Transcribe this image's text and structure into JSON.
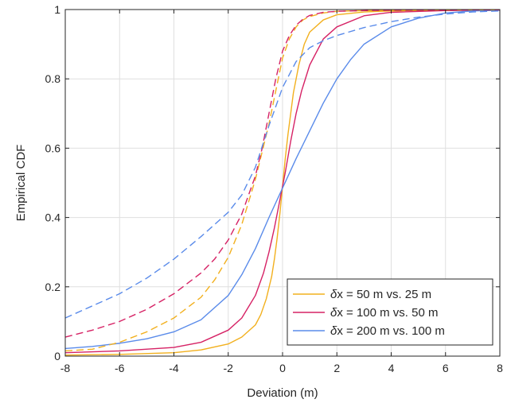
{
  "chart_data": {
    "type": "line",
    "title": "",
    "xlabel": "Deviation (m)",
    "ylabel": "Empirical CDF",
    "xlim": [
      -8,
      8
    ],
    "ylim": [
      0,
      1
    ],
    "xticks": [
      -8,
      -6,
      -4,
      -2,
      0,
      2,
      4,
      6,
      8
    ],
    "yticks": [
      0,
      0.2,
      0.4,
      0.6,
      0.8,
      1
    ],
    "xtick_labels": [
      "-8",
      "-6",
      "-4",
      "-2",
      "0",
      "2",
      "4",
      "6",
      "8"
    ],
    "ytick_labels": [
      "0",
      "0.2",
      "0.4",
      "0.6",
      "0.8",
      "1"
    ],
    "grid": true,
    "legend": {
      "placement": "bottom-right",
      "entries": [
        {
          "symbol": "δ",
          "text": "x = 50 m vs. 25 m",
          "color": "#F2B01E"
        },
        {
          "symbol": "δ",
          "text": "x = 100 m vs. 50 m",
          "color": "#D62265"
        },
        {
          "symbol": "δ",
          "text": "x = 200 m vs. 100 m",
          "color": "#5A8BEA"
        }
      ]
    },
    "series": [
      {
        "name": "δx = 50 m vs. 25 m",
        "style": "solid",
        "color": "#F2B01E",
        "x": [
          -8,
          -6,
          -4,
          -3,
          -2,
          -1.5,
          -1,
          -0.8,
          -0.6,
          -0.4,
          -0.3,
          -0.2,
          -0.1,
          0,
          0.1,
          0.2,
          0.3,
          0.4,
          0.6,
          0.8,
          1,
          1.5,
          2,
          3,
          4,
          6,
          8
        ],
        "y": [
          0.003,
          0.005,
          0.01,
          0.018,
          0.035,
          0.055,
          0.09,
          0.12,
          0.165,
          0.23,
          0.28,
          0.34,
          0.41,
          0.49,
          0.57,
          0.64,
          0.7,
          0.76,
          0.84,
          0.9,
          0.935,
          0.97,
          0.985,
          0.993,
          0.996,
          0.998,
          0.999
        ]
      },
      {
        "name": "δx = 100 m vs. 50 m",
        "style": "solid",
        "color": "#D62265",
        "x": [
          -8,
          -6,
          -4,
          -3,
          -2,
          -1.5,
          -1,
          -0.7,
          -0.5,
          -0.3,
          -0.2,
          -0.1,
          0,
          0.1,
          0.2,
          0.3,
          0.5,
          0.7,
          1,
          1.5,
          2,
          3,
          4,
          6,
          8
        ],
        "y": [
          0.01,
          0.015,
          0.025,
          0.04,
          0.075,
          0.11,
          0.175,
          0.24,
          0.3,
          0.37,
          0.41,
          0.45,
          0.49,
          0.53,
          0.575,
          0.62,
          0.7,
          0.765,
          0.84,
          0.915,
          0.95,
          0.982,
          0.992,
          0.997,
          0.999
        ]
      },
      {
        "name": "δx = 200 m vs. 100 m",
        "style": "solid",
        "color": "#5A8BEA",
        "x": [
          -8,
          -7,
          -6,
          -5,
          -4,
          -3,
          -2,
          -1.5,
          -1,
          -0.5,
          0,
          0.5,
          1,
          1.5,
          2,
          2.5,
          3,
          4,
          5,
          6,
          7,
          8
        ],
        "y": [
          0.022,
          0.028,
          0.037,
          0.05,
          0.07,
          0.105,
          0.175,
          0.235,
          0.31,
          0.4,
          0.485,
          0.57,
          0.65,
          0.73,
          0.8,
          0.855,
          0.9,
          0.95,
          0.975,
          0.99,
          0.996,
          0.998
        ]
      },
      {
        "name": "",
        "style": "dashed",
        "color": "#F2B01E",
        "x": [
          -8,
          -7,
          -6,
          -5,
          -4,
          -3,
          -2.5,
          -2,
          -1.5,
          -1,
          -0.5,
          0,
          0.25,
          0.5,
          0.75,
          1,
          1.5,
          2,
          3,
          4,
          6,
          8
        ],
        "y": [
          0.015,
          0.02,
          0.04,
          0.07,
          0.11,
          0.17,
          0.22,
          0.285,
          0.38,
          0.51,
          0.67,
          0.86,
          0.915,
          0.95,
          0.97,
          0.98,
          0.99,
          0.995,
          0.997,
          0.998,
          0.999,
          0.999
        ]
      },
      {
        "name": "",
        "style": "dashed",
        "color": "#D62265",
        "x": [
          -8,
          -7,
          -6,
          -5,
          -4,
          -3,
          -2.5,
          -2,
          -1.5,
          -1,
          -0.75,
          -0.5,
          -0.25,
          0,
          0.25,
          0.5,
          0.75,
          1,
          1.5,
          2,
          3,
          4,
          6,
          8
        ],
        "y": [
          0.055,
          0.075,
          0.1,
          0.135,
          0.18,
          0.24,
          0.28,
          0.335,
          0.41,
          0.52,
          0.6,
          0.7,
          0.8,
          0.88,
          0.925,
          0.955,
          0.972,
          0.983,
          0.992,
          0.995,
          0.997,
          0.998,
          0.999,
          0.999
        ]
      },
      {
        "name": "",
        "style": "dashed",
        "color": "#5A8BEA",
        "x": [
          -8,
          -7,
          -6,
          -5,
          -4,
          -3,
          -2,
          -1.5,
          -1,
          -0.5,
          0,
          0.5,
          1,
          1.5,
          2,
          3,
          4,
          5,
          6,
          7,
          8
        ],
        "y": [
          0.11,
          0.145,
          0.18,
          0.225,
          0.28,
          0.345,
          0.415,
          0.465,
          0.545,
          0.665,
          0.775,
          0.85,
          0.89,
          0.91,
          0.925,
          0.948,
          0.965,
          0.978,
          0.987,
          0.993,
          0.996
        ]
      }
    ]
  }
}
